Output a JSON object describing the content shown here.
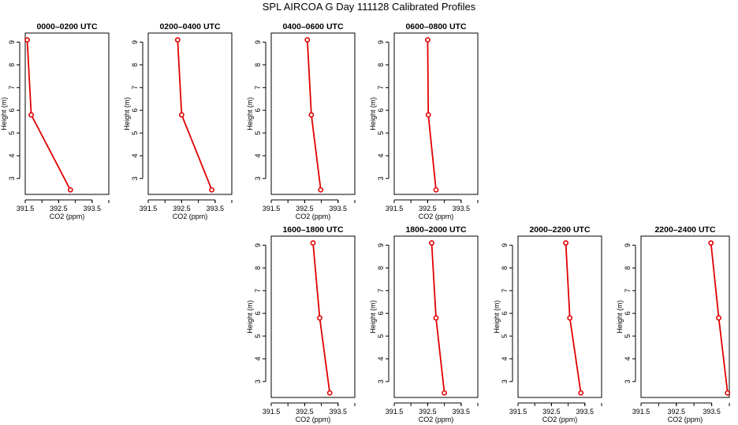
{
  "page_title": "SPL AIRCOA G  Day 111128  Calibrated Profiles",
  "colors": {
    "series": "#e00000",
    "axes": "#000000"
  },
  "chart_data": [
    {
      "type": "line",
      "title": "0000–0200 UTC",
      "xlabel": "CO2 (ppm)",
      "ylabel": "Height (m)",
      "xlim": [
        391.5,
        394.0
      ],
      "ylim": [
        2.3,
        9.4
      ],
      "xticks": [
        391.5,
        392.5,
        393.5
      ],
      "xtick_labels": [
        "391.5",
        "392.5",
        "393.5"
      ],
      "yticks": [
        3,
        4,
        5,
        6,
        7,
        8,
        9
      ],
      "ytick_labels": [
        "3",
        "4",
        "5",
        "6",
        "7",
        "8",
        "9"
      ],
      "x": [
        391.56,
        391.68,
        392.85
      ],
      "y": [
        9.1,
        5.8,
        2.5
      ]
    },
    {
      "type": "line",
      "title": "0200–0400 UTC",
      "xlabel": "CO2 (ppm)",
      "ylabel": "Height (m)",
      "xlim": [
        391.5,
        394.0
      ],
      "ylim": [
        2.3,
        9.4
      ],
      "xticks": [
        391.5,
        392.5,
        393.5
      ],
      "xtick_labels": [
        "391.5",
        "392.5",
        "393.5"
      ],
      "yticks": [
        3,
        4,
        5,
        6,
        7,
        8,
        9
      ],
      "ytick_labels": [
        "3",
        "4",
        "5",
        "6",
        "7",
        "8",
        "9"
      ],
      "x": [
        392.38,
        392.5,
        393.4
      ],
      "y": [
        9.1,
        5.8,
        2.5
      ]
    },
    {
      "type": "line",
      "title": "0400–0600 UTC",
      "xlabel": "CO2 (ppm)",
      "ylabel": "Height (m)",
      "xlim": [
        391.5,
        394.0
      ],
      "ylim": [
        2.3,
        9.4
      ],
      "xticks": [
        391.5,
        392.5,
        393.5
      ],
      "xtick_labels": [
        "391.5",
        "392.5",
        "393.5"
      ],
      "yticks": [
        3,
        4,
        5,
        6,
        7,
        8,
        9
      ],
      "ytick_labels": [
        "3",
        "4",
        "5",
        "6",
        "7",
        "8",
        "9"
      ],
      "x": [
        392.58,
        392.7,
        392.98
      ],
      "y": [
        9.1,
        5.8,
        2.5
      ]
    },
    {
      "type": "line",
      "title": "0600–0800 UTC",
      "xlabel": "CO2 (ppm)",
      "ylabel": "Height (m)",
      "xlim": [
        391.5,
        394.0
      ],
      "ylim": [
        2.3,
        9.4
      ],
      "xticks": [
        391.5,
        392.5,
        393.5
      ],
      "xtick_labels": [
        "391.5",
        "392.5",
        "393.5"
      ],
      "yticks": [
        3,
        4,
        5,
        6,
        7,
        8,
        9
      ],
      "ytick_labels": [
        "3",
        "4",
        "5",
        "6",
        "7",
        "8",
        "9"
      ],
      "x": [
        392.5,
        392.52,
        392.75
      ],
      "y": [
        9.1,
        5.8,
        2.5
      ]
    },
    {
      "type": "line",
      "title": "1600–1800 UTC",
      "xlabel": "CO2 (ppm)",
      "ylabel": "Height (m)",
      "xlim": [
        391.5,
        394.0
      ],
      "ylim": [
        2.3,
        9.4
      ],
      "xticks": [
        391.5,
        392.5,
        393.5
      ],
      "xtick_labels": [
        "391.5",
        "392.5",
        "393.5"
      ],
      "yticks": [
        3,
        4,
        5,
        6,
        7,
        8,
        9
      ],
      "ytick_labels": [
        "3",
        "4",
        "5",
        "6",
        "7",
        "8",
        "9"
      ],
      "x": [
        392.75,
        392.95,
        393.25
      ],
      "y": [
        9.1,
        5.8,
        2.5
      ]
    },
    {
      "type": "line",
      "title": "1800–2000 UTC",
      "xlabel": "CO2 (ppm)",
      "ylabel": "Height (m)",
      "xlim": [
        391.5,
        394.0
      ],
      "ylim": [
        2.3,
        9.4
      ],
      "xticks": [
        391.5,
        392.5,
        393.5
      ],
      "xtick_labels": [
        "391.5",
        "392.5",
        "393.5"
      ],
      "yticks": [
        3,
        4,
        5,
        6,
        7,
        8,
        9
      ],
      "ytick_labels": [
        "3",
        "4",
        "5",
        "6",
        "7",
        "8",
        "9"
      ],
      "x": [
        392.62,
        392.75,
        393.0
      ],
      "y": [
        9.1,
        5.8,
        2.5
      ]
    },
    {
      "type": "line",
      "title": "2000–2200 UTC",
      "xlabel": "CO2 (ppm)",
      "ylabel": "Height (m)",
      "xlim": [
        391.5,
        394.0
      ],
      "ylim": [
        2.3,
        9.4
      ],
      "xticks": [
        391.5,
        392.5,
        393.5
      ],
      "xtick_labels": [
        "391.5",
        "392.5",
        "393.5"
      ],
      "yticks": [
        3,
        4,
        5,
        6,
        7,
        8,
        9
      ],
      "ytick_labels": [
        "3",
        "4",
        "5",
        "6",
        "7",
        "8",
        "9"
      ],
      "x": [
        392.93,
        393.05,
        393.38
      ],
      "y": [
        9.1,
        5.8,
        2.5
      ]
    },
    {
      "type": "line",
      "title": "2200–2400 UTC",
      "xlabel": "CO2 (ppm)",
      "ylabel": "Height (m)",
      "xlim": [
        391.5,
        394.0
      ],
      "ylim": [
        2.3,
        9.4
      ],
      "xticks": [
        391.5,
        392.5,
        393.5
      ],
      "xtick_labels": [
        "391.5",
        "392.5",
        "393.5"
      ],
      "yticks": [
        3,
        4,
        5,
        6,
        7,
        8,
        9
      ],
      "ytick_labels": [
        "3",
        "4",
        "5",
        "6",
        "7",
        "8",
        "9"
      ],
      "x": [
        393.48,
        393.7,
        393.95
      ],
      "y": [
        9.1,
        5.8,
        2.5
      ]
    }
  ]
}
